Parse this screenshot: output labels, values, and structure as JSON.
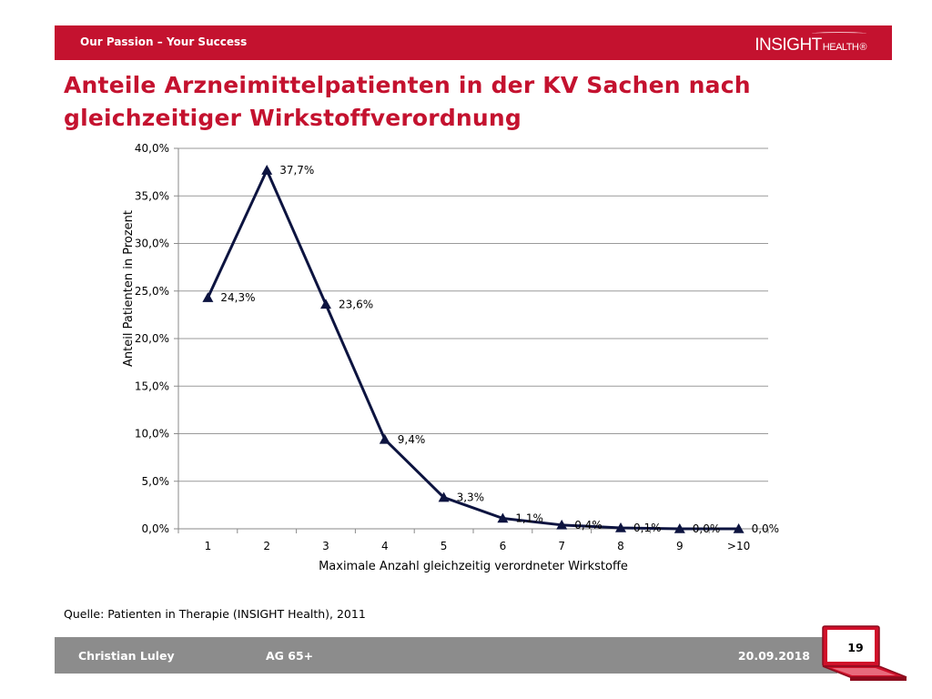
{
  "header": {
    "tagline": "Our Passion – Your Success",
    "logo_main": "INSIGHT",
    "logo_sub": "HEALTH",
    "logo_mark": "®",
    "title_line1": "Anteile Arzneimittelpatienten in der KV Sachen nach",
    "title_line2": "gleichzeitiger Wirkstoffverordnung"
  },
  "chart_data": {
    "type": "line",
    "title": "",
    "xlabel": "Maximale Anzahl  gleichzeitig verordneter Wirkstoffe",
    "ylabel": "Anteil Patienten in Prozent",
    "categories": [
      "1",
      "2",
      "3",
      "4",
      "5",
      "6",
      "7",
      "8",
      "9",
      ">10"
    ],
    "values": [
      24.3,
      37.7,
      23.6,
      9.4,
      3.3,
      1.1,
      0.4,
      0.1,
      0.0,
      0.0
    ],
    "data_labels": [
      "24,3%",
      "37,7%",
      "23,6%",
      "9,4%",
      "3,3%",
      "1,1%",
      "0,4%",
      "0,1%",
      "0,0%",
      "0,0%"
    ],
    "ylim": [
      0,
      40
    ],
    "yticks": [
      0,
      5,
      10,
      15,
      20,
      25,
      30,
      35,
      40
    ],
    "ytick_labels": [
      "0,0%",
      "5,0%",
      "10,0%",
      "15,0%",
      "20,0%",
      "25,0%",
      "30,0%",
      "35,0%",
      "40,0%"
    ],
    "grid": true,
    "marker": "triangle",
    "line_color": "#0d1440"
  },
  "source": "Quelle: Patienten in Therapie (INSIGHT Health), 2011",
  "footer": {
    "author": "Christian Luley",
    "event": "AG 65+",
    "date": "20.09.2018",
    "page_number": "19"
  },
  "colors": {
    "brand_red": "#c4122f",
    "footer_gray": "#8c8c8c"
  }
}
